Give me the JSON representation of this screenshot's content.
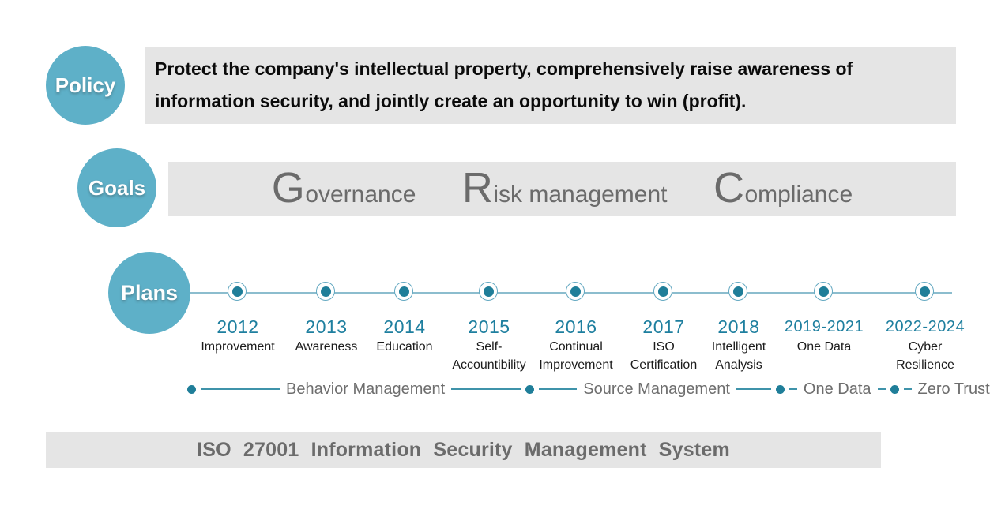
{
  "policy": {
    "label": "Policy",
    "line1": "Protect the company's intellectual property, comprehensively raise awareness of",
    "line2": "information security, and jointly create an opportunity to win (profit)."
  },
  "goals": {
    "label": "Goals",
    "items": [
      {
        "initial": "G",
        "rest": "overnance"
      },
      {
        "initial": "R",
        "rest": "isk management"
      },
      {
        "initial": "C",
        "rest": "ompliance"
      }
    ]
  },
  "plans": {
    "label": "Plans",
    "milestones": [
      {
        "year": "2012",
        "lines": [
          "Improvement"
        ]
      },
      {
        "year": "2013",
        "lines": [
          "Awareness"
        ]
      },
      {
        "year": "2014",
        "lines": [
          "Education"
        ]
      },
      {
        "year": "2015",
        "lines": [
          "Self-",
          "Accountibility"
        ]
      },
      {
        "year": "2016",
        "lines": [
          "Continual",
          "Improvement"
        ]
      },
      {
        "year": "2017",
        "lines": [
          "ISO",
          "Certification"
        ]
      },
      {
        "year": "2018",
        "lines": [
          "Intelligent",
          "Analysis"
        ]
      },
      {
        "year": "2019-2021",
        "lines": [
          "One Data"
        ]
      },
      {
        "year": "2022-2024",
        "lines": [
          "Cyber",
          "Resilience"
        ]
      }
    ]
  },
  "phases": {
    "items": [
      "Behavior Management",
      "Source Management",
      "One Data",
      "Zero Trust"
    ]
  },
  "footer": {
    "text": "ISO 27001 Information Security Management System"
  },
  "colors": {
    "bubble_teal": "#5EB0C8",
    "dot_teal": "#1F7E99",
    "year_teal": "#1E7F9F",
    "panel_gray": "#E5E5E5",
    "text_gray": "#6B6B6B",
    "line_teal": "#3F93AA"
  }
}
